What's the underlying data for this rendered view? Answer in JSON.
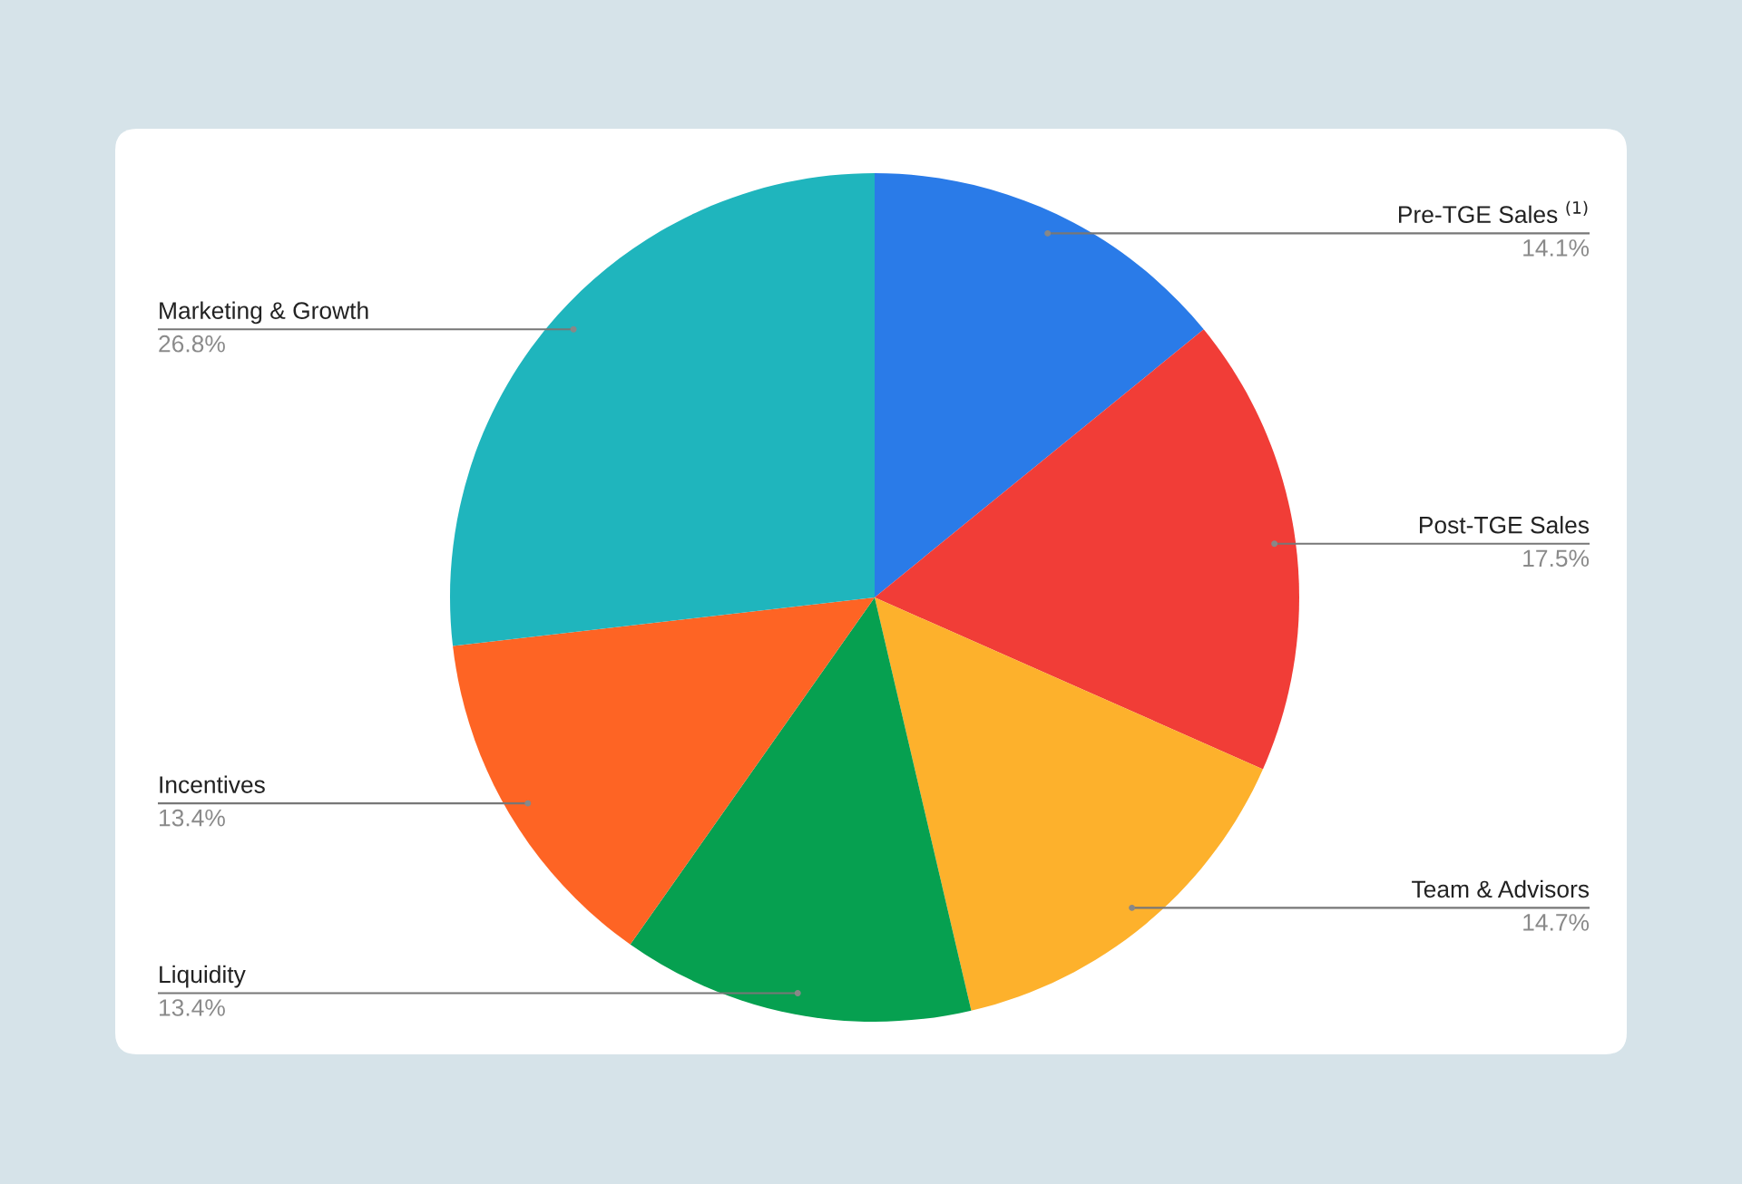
{
  "chart_data": {
    "type": "pie",
    "categories": [
      "Pre-TGE Sales $^{(1)}$",
      "Post-TGE Sales",
      "Team & Advisors",
      "Liquidity",
      "Incentives",
      "Marketing & Growth"
    ],
    "values": [
      14.1,
      17.5,
      14.7,
      13.4,
      13.4,
      26.8
    ],
    "value_labels": [
      "14.1%",
      "17.5%",
      "14.7%",
      "13.4%",
      "13.4%",
      "26.8%"
    ],
    "colors": [
      "#2a7be8",
      "#f13d37",
      "#fdb12c",
      "#06a050",
      "#fe6424",
      "#1fb5bd"
    ]
  }
}
